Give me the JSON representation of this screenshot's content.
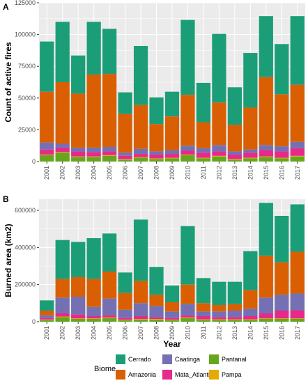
{
  "chart_data": [
    {
      "type": "bar",
      "stacked": true,
      "panel_tag": "A",
      "title": "",
      "xlabel": "",
      "ylabel": "Count of active fires",
      "ylim": [
        0,
        125000
      ],
      "yticks": [
        0,
        25000,
        50000,
        75000,
        100000,
        125000
      ],
      "ytick_labels": [
        "0",
        "25000",
        "50000",
        "75000",
        "100000",
        "125000"
      ],
      "grid": true,
      "categories": [
        "2001",
        "2002",
        "2003",
        "2004",
        "2005",
        "2006",
        "2007",
        "2008",
        "2009",
        "2010",
        "2011",
        "2012",
        "2013",
        "2014",
        "2015",
        "2016",
        "2017"
      ],
      "series": [
        {
          "name": "Pantanal",
          "values": [
            5000,
            7000,
            3500,
            3500,
            4500,
            1500,
            3000,
            2000,
            2500,
            5000,
            2500,
            4000,
            1500,
            2500,
            3500,
            2500,
            4000
          ]
        },
        {
          "name": "Pampa",
          "values": [
            500,
            500,
            500,
            500,
            500,
            500,
            500,
            500,
            500,
            500,
            500,
            500,
            500,
            500,
            500,
            500,
            500
          ]
        },
        {
          "name": "Mata_Atlantica",
          "values": [
            4000,
            3500,
            4000,
            3500,
            3000,
            2500,
            2500,
            3000,
            3000,
            3000,
            4000,
            3500,
            3500,
            4000,
            5000,
            5000,
            6000
          ]
        },
        {
          "name": "Caatinga",
          "values": [
            5500,
            3000,
            3000,
            3500,
            3500,
            2500,
            4000,
            2500,
            3000,
            4000,
            3500,
            5000,
            2500,
            2500,
            4000,
            4000,
            5000
          ]
        },
        {
          "name": "Amazonia",
          "values": [
            40000,
            48500,
            42500,
            57500,
            57500,
            30500,
            34500,
            21500,
            26500,
            40000,
            20500,
            33500,
            21000,
            33000,
            53500,
            41000,
            45000
          ]
        },
        {
          "name": "Cerrado",
          "values": [
            39500,
            47500,
            30000,
            41500,
            35500,
            17000,
            46500,
            21000,
            19500,
            59000,
            31000,
            54000,
            29500,
            43000,
            48000,
            39500,
            54000
          ]
        }
      ]
    },
    {
      "type": "bar",
      "stacked": true,
      "panel_tag": "B",
      "title": "",
      "xlabel": "Year",
      "ylabel": "Burned area (km2)",
      "ylim": [
        0,
        660000
      ],
      "yticks": [
        0,
        200000,
        400000,
        600000
      ],
      "ytick_labels": [
        "0",
        "200000",
        "400000",
        "600000"
      ],
      "grid": true,
      "categories": [
        "2001",
        "2002",
        "2003",
        "2004",
        "2005",
        "2006",
        "2007",
        "2008",
        "2009",
        "2010",
        "2011",
        "2012",
        "2013",
        "2014",
        "2015",
        "2016",
        "2017"
      ],
      "series": [
        {
          "name": "Pantanal",
          "values": [
            10000,
            25000,
            15000,
            15000,
            20000,
            8000,
            12000,
            12000,
            8000,
            20000,
            10000,
            10000,
            10000,
            10000,
            15000,
            15000,
            15000
          ]
        },
        {
          "name": "Pampa",
          "values": [
            2000,
            3000,
            3000,
            3000,
            3000,
            3000,
            3000,
            3000,
            3000,
            3000,
            3000,
            3000,
            3000,
            3000,
            3000,
            3000,
            3000
          ]
        },
        {
          "name": "Mata_Atlantica",
          "values": [
            8000,
            17000,
            22000,
            12000,
            12000,
            9000,
            15000,
            10000,
            9000,
            12000,
            17000,
            12000,
            12000,
            17000,
            27000,
            42000,
            44000
          ]
        },
        {
          "name": "Caatinga",
          "values": [
            15000,
            85000,
            95000,
            50000,
            90000,
            45000,
            70000,
            60000,
            35000,
            60000,
            25000,
            30000,
            35000,
            40000,
            85000,
            85000,
            90000
          ]
        },
        {
          "name": "Amazonia",
          "values": [
            25000,
            100000,
            105000,
            150000,
            145000,
            90000,
            120000,
            60000,
            50000,
            105000,
            45000,
            35000,
            35000,
            100000,
            225000,
            175000,
            225000
          ]
        },
        {
          "name": "Cerrado",
          "values": [
            55000,
            210000,
            190000,
            220000,
            205000,
            110000,
            330000,
            150000,
            90000,
            315000,
            135000,
            125000,
            120000,
            210000,
            285000,
            250000,
            255000
          ]
        }
      ]
    }
  ],
  "legend": {
    "title": "Biome",
    "entries": [
      {
        "name": "Cerrado",
        "color": "#1b9e77"
      },
      {
        "name": "Amazonia",
        "color": "#d95f02"
      },
      {
        "name": "Caatinga",
        "color": "#7570b3"
      },
      {
        "name": "Mata_Atlantica",
        "color": "#e7298a"
      },
      {
        "name": "Pantanal",
        "color": "#66a61e"
      },
      {
        "name": "Pampa",
        "color": "#e6ab02"
      }
    ]
  },
  "colors": {
    "panel_background": "#ebebeb",
    "grid": "#ffffff",
    "Cerrado": "#1b9e77",
    "Amazonia": "#d95f02",
    "Caatinga": "#7570b3",
    "Mata_Atlantica": "#e7298a",
    "Pantanal": "#66a61e",
    "Pampa": "#e6ab02"
  }
}
